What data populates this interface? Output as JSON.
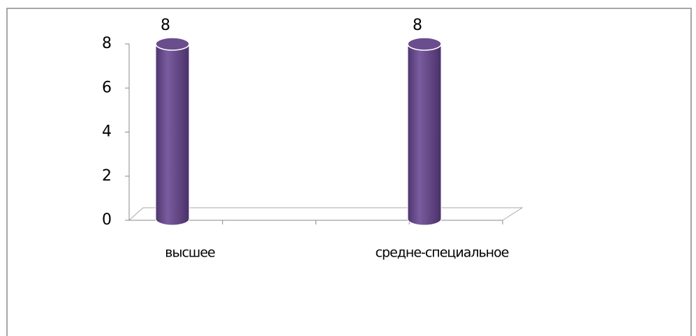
{
  "chart_data": {
    "type": "bar3d",
    "categories": [
      "высшее",
      "средне-специальное"
    ],
    "values": [
      8,
      8
    ],
    "color": "#6a4d8c",
    "ylim": [
      0,
      8
    ],
    "yticks": [
      0,
      2,
      4,
      6,
      8
    ]
  }
}
